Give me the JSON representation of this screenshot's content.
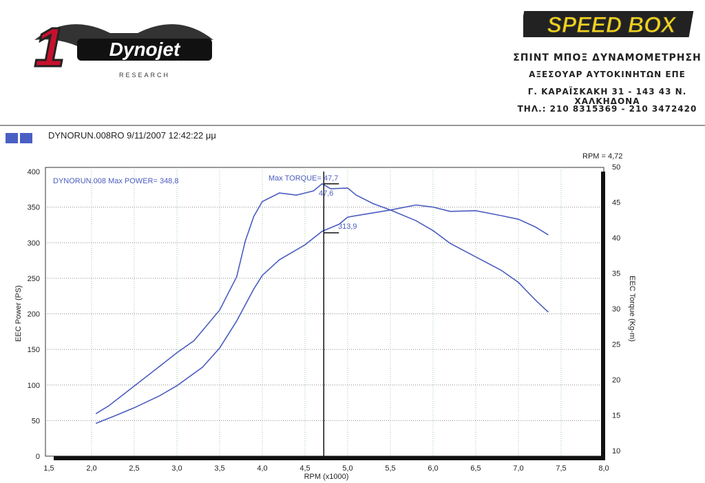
{
  "logos": {
    "left": {
      "main": "Dynojet",
      "number": "1",
      "sub": "RESEARCH"
    },
    "right": {
      "text": "SPEED BOX"
    }
  },
  "company": {
    "name": "ΣΠΙΝΤ ΜΠΟΞ ΔΥΝΑΜΟΜΕΤΡΗΣΗ",
    "line2": "ΑΞΕΣΟΥΑΡ ΑΥΤΟΚΙΝΗΤΩΝ ΕΠΕ",
    "address": "Γ. ΚΑΡΑΪΣΚΑΚΗ 31 - 143 43 Ν. ΧΑΛΚΗΔΟΝΑ",
    "phone": "ΤΗΛ.: 210 8315369 - 210 3472420"
  },
  "run_header": "DYNORUN.008RO  9/11/2007 12:42:22 μμ",
  "chart_data": {
    "type": "line",
    "xlabel": "RPM (x1000)",
    "ylabel": "EEC Power (PS)",
    "y2label": "EEC Torque (Kg-m)",
    "xlim": [
      1.5,
      8.0
    ],
    "ylim": [
      0,
      400
    ],
    "y2lim": [
      10,
      50
    ],
    "xticks": [
      "1,5",
      "2,0",
      "2,5",
      "3,0",
      "3,5",
      "4,0",
      "4,5",
      "5,0",
      "5,5",
      "6,0",
      "6,5",
      "7,0",
      "7,5",
      "8,0"
    ],
    "yticks": [
      "0",
      "50",
      "100",
      "150",
      "200",
      "250",
      "300",
      "350",
      "400"
    ],
    "y2ticks": [
      "10",
      "15",
      "20",
      "25",
      "30",
      "35",
      "40",
      "45",
      "50"
    ],
    "grid": true,
    "colors": {
      "series": "#4a5cc0",
      "cursor": "#111111"
    },
    "annotations": {
      "power_label": "DYNORUN.008  Max POWER= 348,8",
      "torque_label": "Max TORQUE= 47,7",
      "cursor_rpm": "RPM = 4,72",
      "cursor_torque": "47,6",
      "cursor_power": "313,9"
    },
    "cursor_x": 4.72,
    "series": [
      {
        "axis": "right",
        "x": [
          2.05,
          2.2,
          2.5,
          2.8,
          3.0,
          3.2,
          3.5,
          3.7,
          3.8,
          3.9,
          4.0,
          4.2,
          4.4,
          4.5,
          4.6,
          4.7,
          4.8,
          5.0,
          5.1,
          5.3,
          5.5,
          5.8,
          6.0,
          6.2,
          6.5,
          6.8,
          7.0,
          7.2,
          7.35
        ],
        "y": [
          15.2,
          16.3,
          19.1,
          21.9,
          23.8,
          25.5,
          29.8,
          34.5,
          39.5,
          43.0,
          45.1,
          46.3,
          46.0,
          46.3,
          46.6,
          47.6,
          46.9,
          47.0,
          46.0,
          44.8,
          43.9,
          42.4,
          41.0,
          39.2,
          37.3,
          35.4,
          33.7,
          31.2,
          29.5
        ]
      },
      {
        "axis": "left",
        "x": [
          2.05,
          2.3,
          2.5,
          2.8,
          3.0,
          3.3,
          3.5,
          3.7,
          3.9,
          4.0,
          4.2,
          4.5,
          4.7,
          4.9,
          5.0,
          5.2,
          5.5,
          5.8,
          6.0,
          6.2,
          6.5,
          6.8,
          7.0,
          7.2,
          7.35
        ],
        "y": [
          46,
          58,
          68,
          85,
          99,
          125,
          152,
          190,
          235,
          254,
          276,
          297,
          316,
          326,
          336,
          340,
          346,
          353,
          350,
          344,
          345,
          338,
          333,
          322,
          311
        ]
      }
    ]
  }
}
